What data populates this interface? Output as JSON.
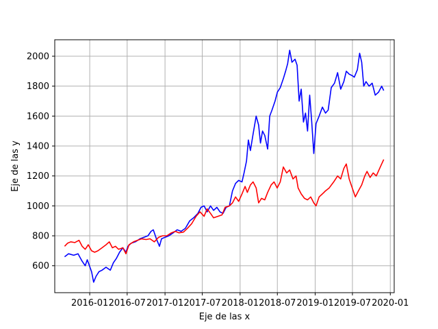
{
  "chart_data": {
    "type": "line",
    "xlabel": "Eje de las x",
    "ylabel": "Eje de las y",
    "grid": true,
    "x_axis": {
      "type": "date",
      "range": [
        "2015-07-15",
        "2020-01-20"
      ],
      "ticks": [
        {
          "date": "2016-01-01",
          "label": "2016-01"
        },
        {
          "date": "2016-07-01",
          "label": "2016-07"
        },
        {
          "date": "2017-01-01",
          "label": "2017-01"
        },
        {
          "date": "2017-07-01",
          "label": "2017-07"
        },
        {
          "date": "2018-01-01",
          "label": "2018-01"
        },
        {
          "date": "2018-07-01",
          "label": "2018-07"
        },
        {
          "date": "2019-01-01",
          "label": "2019-01"
        },
        {
          "date": "2019-07-01",
          "label": "2019-07"
        },
        {
          "date": "2020-01-01",
          "label": "2020-01"
        }
      ]
    },
    "y_axis": {
      "range": [
        420,
        2110
      ],
      "ticks": [
        600,
        800,
        1000,
        1200,
        1400,
        1600,
        1800,
        2000
      ]
    },
    "series": [
      {
        "color": "#0000ff",
        "points": [
          [
            "2015-09-01",
            660
          ],
          [
            "2015-09-20",
            680
          ],
          [
            "2015-10-15",
            670
          ],
          [
            "2015-11-05",
            680
          ],
          [
            "2015-11-25",
            630
          ],
          [
            "2015-12-10",
            600
          ],
          [
            "2015-12-20",
            640
          ],
          [
            "2016-01-10",
            560
          ],
          [
            "2016-01-20",
            490
          ],
          [
            "2016-02-01",
            530
          ],
          [
            "2016-02-15",
            560
          ],
          [
            "2016-03-01",
            570
          ],
          [
            "2016-03-20",
            590
          ],
          [
            "2016-04-10",
            570
          ],
          [
            "2016-04-25",
            620
          ],
          [
            "2016-05-10",
            650
          ],
          [
            "2016-05-25",
            690
          ],
          [
            "2016-06-10",
            720
          ],
          [
            "2016-06-25",
            690
          ],
          [
            "2016-07-05",
            730
          ],
          [
            "2016-07-20",
            750
          ],
          [
            "2016-08-10",
            760
          ],
          [
            "2016-09-01",
            780
          ],
          [
            "2016-09-20",
            790
          ],
          [
            "2016-10-10",
            800
          ],
          [
            "2016-10-25",
            830
          ],
          [
            "2016-11-05",
            840
          ],
          [
            "2016-11-20",
            780
          ],
          [
            "2016-12-05",
            730
          ],
          [
            "2016-12-15",
            780
          ],
          [
            "2017-01-01",
            790
          ],
          [
            "2017-01-20",
            800
          ],
          [
            "2017-02-10",
            820
          ],
          [
            "2017-03-01",
            840
          ],
          [
            "2017-03-20",
            830
          ],
          [
            "2017-04-10",
            850
          ],
          [
            "2017-05-01",
            900
          ],
          [
            "2017-05-20",
            920
          ],
          [
            "2017-06-10",
            950
          ],
          [
            "2017-06-25",
            990
          ],
          [
            "2017-07-10",
            1000
          ],
          [
            "2017-07-25",
            960
          ],
          [
            "2017-08-10",
            1000
          ],
          [
            "2017-08-25",
            970
          ],
          [
            "2017-09-10",
            990
          ],
          [
            "2017-09-25",
            960
          ],
          [
            "2017-10-10",
            950
          ],
          [
            "2017-10-25",
            990
          ],
          [
            "2017-11-10",
            1000
          ],
          [
            "2017-11-25",
            1100
          ],
          [
            "2017-12-10",
            1150
          ],
          [
            "2017-12-25",
            1170
          ],
          [
            "2018-01-10",
            1160
          ],
          [
            "2018-01-20",
            1220
          ],
          [
            "2018-02-01",
            1300
          ],
          [
            "2018-02-10",
            1440
          ],
          [
            "2018-02-20",
            1370
          ],
          [
            "2018-03-05",
            1480
          ],
          [
            "2018-03-20",
            1600
          ],
          [
            "2018-04-01",
            1540
          ],
          [
            "2018-04-10",
            1420
          ],
          [
            "2018-04-20",
            1500
          ],
          [
            "2018-05-01",
            1470
          ],
          [
            "2018-05-15",
            1380
          ],
          [
            "2018-05-25",
            1600
          ],
          [
            "2018-06-05",
            1640
          ],
          [
            "2018-06-20",
            1700
          ],
          [
            "2018-07-01",
            1760
          ],
          [
            "2018-07-15",
            1790
          ],
          [
            "2018-07-30",
            1850
          ],
          [
            "2018-08-10",
            1900
          ],
          [
            "2018-08-20",
            1950
          ],
          [
            "2018-08-30",
            2040
          ],
          [
            "2018-09-10",
            1960
          ],
          [
            "2018-09-25",
            1980
          ],
          [
            "2018-10-05",
            1940
          ],
          [
            "2018-10-15",
            1700
          ],
          [
            "2018-10-25",
            1780
          ],
          [
            "2018-11-05",
            1560
          ],
          [
            "2018-11-15",
            1620
          ],
          [
            "2018-11-25",
            1500
          ],
          [
            "2018-12-05",
            1740
          ],
          [
            "2018-12-15",
            1560
          ],
          [
            "2018-12-25",
            1350
          ],
          [
            "2019-01-05",
            1550
          ],
          [
            "2019-01-20",
            1600
          ],
          [
            "2019-02-05",
            1660
          ],
          [
            "2019-02-20",
            1620
          ],
          [
            "2019-03-05",
            1640
          ],
          [
            "2019-03-20",
            1790
          ],
          [
            "2019-04-05",
            1820
          ],
          [
            "2019-04-20",
            1890
          ],
          [
            "2019-05-05",
            1780
          ],
          [
            "2019-05-20",
            1830
          ],
          [
            "2019-06-01",
            1900
          ],
          [
            "2019-06-15",
            1880
          ],
          [
            "2019-06-30",
            1870
          ],
          [
            "2019-07-10",
            1860
          ],
          [
            "2019-07-25",
            1910
          ],
          [
            "2019-08-05",
            2020
          ],
          [
            "2019-08-15",
            1960
          ],
          [
            "2019-08-25",
            1800
          ],
          [
            "2019-09-05",
            1830
          ],
          [
            "2019-09-20",
            1800
          ],
          [
            "2019-10-05",
            1820
          ],
          [
            "2019-10-20",
            1740
          ],
          [
            "2019-11-05",
            1760
          ],
          [
            "2019-11-20",
            1800
          ],
          [
            "2019-11-30",
            1770
          ]
        ]
      },
      {
        "color": "#ff0000",
        "points": [
          [
            "2015-09-01",
            730
          ],
          [
            "2015-09-15",
            750
          ],
          [
            "2015-10-01",
            760
          ],
          [
            "2015-10-20",
            755
          ],
          [
            "2015-11-10",
            770
          ],
          [
            "2015-11-25",
            730
          ],
          [
            "2015-12-10",
            710
          ],
          [
            "2015-12-25",
            740
          ],
          [
            "2016-01-10",
            700
          ],
          [
            "2016-01-25",
            690
          ],
          [
            "2016-02-10",
            700
          ],
          [
            "2016-03-01",
            720
          ],
          [
            "2016-03-20",
            740
          ],
          [
            "2016-04-05",
            760
          ],
          [
            "2016-04-20",
            720
          ],
          [
            "2016-05-05",
            730
          ],
          [
            "2016-05-20",
            710
          ],
          [
            "2016-06-10",
            720
          ],
          [
            "2016-06-25",
            680
          ],
          [
            "2016-07-10",
            740
          ],
          [
            "2016-08-01",
            760
          ],
          [
            "2016-08-20",
            770
          ],
          [
            "2016-09-10",
            780
          ],
          [
            "2016-10-01",
            775
          ],
          [
            "2016-10-20",
            780
          ],
          [
            "2016-11-10",
            760
          ],
          [
            "2016-12-01",
            790
          ],
          [
            "2016-12-20",
            800
          ],
          [
            "2017-01-10",
            800
          ],
          [
            "2017-02-01",
            820
          ],
          [
            "2017-02-20",
            830
          ],
          [
            "2017-03-10",
            820
          ],
          [
            "2017-04-01",
            825
          ],
          [
            "2017-04-20",
            850
          ],
          [
            "2017-05-10",
            880
          ],
          [
            "2017-06-01",
            930
          ],
          [
            "2017-06-20",
            960
          ],
          [
            "2017-07-10",
            930
          ],
          [
            "2017-07-25",
            980
          ],
          [
            "2017-08-10",
            950
          ],
          [
            "2017-08-25",
            920
          ],
          [
            "2017-09-15",
            930
          ],
          [
            "2017-10-05",
            940
          ],
          [
            "2017-10-20",
            990
          ],
          [
            "2017-11-10",
            1000
          ],
          [
            "2017-11-25",
            1020
          ],
          [
            "2017-12-10",
            1060
          ],
          [
            "2017-12-25",
            1030
          ],
          [
            "2018-01-10",
            1080
          ],
          [
            "2018-01-25",
            1130
          ],
          [
            "2018-02-05",
            1090
          ],
          [
            "2018-02-20",
            1140
          ],
          [
            "2018-03-05",
            1160
          ],
          [
            "2018-03-20",
            1120
          ],
          [
            "2018-04-01",
            1020
          ],
          [
            "2018-04-15",
            1050
          ],
          [
            "2018-05-01",
            1040
          ],
          [
            "2018-05-15",
            1090
          ],
          [
            "2018-06-01",
            1140
          ],
          [
            "2018-06-15",
            1160
          ],
          [
            "2018-06-30",
            1120
          ],
          [
            "2018-07-15",
            1160
          ],
          [
            "2018-07-30",
            1260
          ],
          [
            "2018-08-15",
            1220
          ],
          [
            "2018-08-30",
            1240
          ],
          [
            "2018-09-15",
            1180
          ],
          [
            "2018-09-30",
            1200
          ],
          [
            "2018-10-10",
            1120
          ],
          [
            "2018-10-25",
            1080
          ],
          [
            "2018-11-10",
            1050
          ],
          [
            "2018-11-25",
            1040
          ],
          [
            "2018-12-10",
            1060
          ],
          [
            "2018-12-25",
            1020
          ],
          [
            "2019-01-05",
            1000
          ],
          [
            "2019-01-20",
            1060
          ],
          [
            "2019-02-05",
            1080
          ],
          [
            "2019-02-20",
            1100
          ],
          [
            "2019-03-10",
            1120
          ],
          [
            "2019-04-01",
            1160
          ],
          [
            "2019-04-20",
            1200
          ],
          [
            "2019-05-05",
            1180
          ],
          [
            "2019-05-20",
            1250
          ],
          [
            "2019-06-01",
            1280
          ],
          [
            "2019-06-15",
            1180
          ],
          [
            "2019-06-30",
            1120
          ],
          [
            "2019-07-15",
            1060
          ],
          [
            "2019-07-30",
            1100
          ],
          [
            "2019-08-15",
            1140
          ],
          [
            "2019-08-30",
            1200
          ],
          [
            "2019-09-10",
            1230
          ],
          [
            "2019-09-25",
            1190
          ],
          [
            "2019-10-10",
            1220
          ],
          [
            "2019-10-25",
            1200
          ],
          [
            "2019-11-10",
            1250
          ],
          [
            "2019-11-20",
            1280
          ],
          [
            "2019-11-30",
            1310
          ]
        ]
      }
    ]
  }
}
